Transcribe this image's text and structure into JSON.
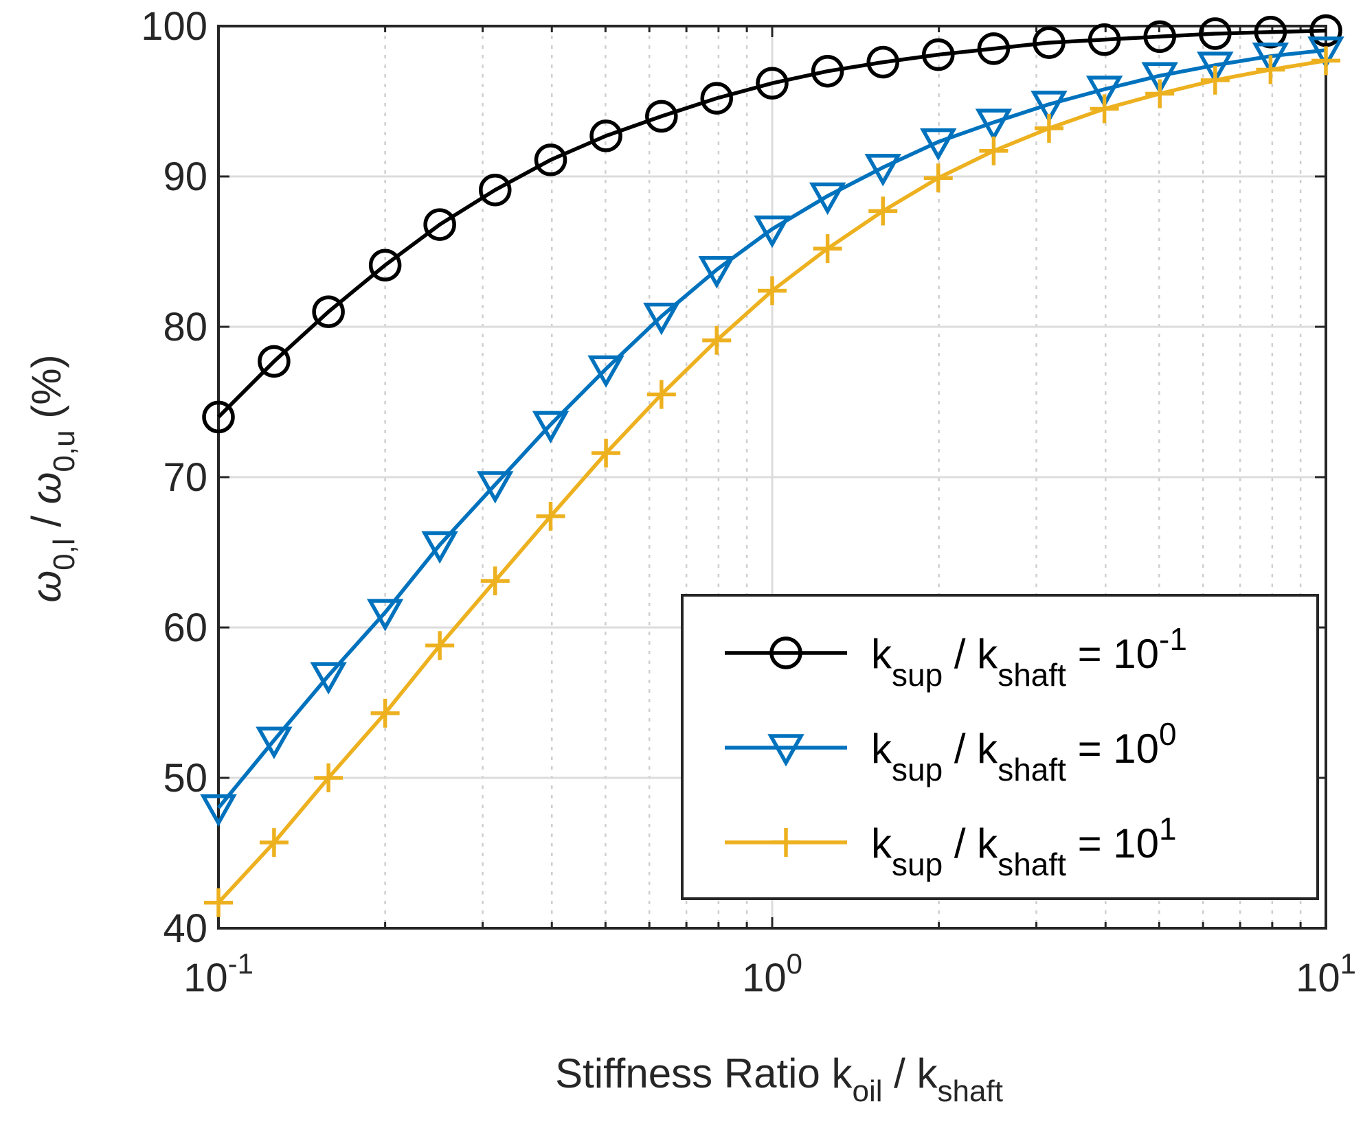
{
  "chart_data": {
    "type": "line",
    "x_scale": "log",
    "x": [
      0.1,
      0.126,
      0.158,
      0.2,
      0.251,
      0.316,
      0.398,
      0.501,
      0.631,
      0.794,
      1.0,
      1.259,
      1.585,
      1.995,
      2.512,
      3.162,
      3.981,
      5.012,
      6.31,
      7.943,
      10.0
    ],
    "series": [
      {
        "name": "10^-1",
        "label_base": "k",
        "label_sub1": "sup",
        "label_mid": " / k",
        "label_sub2": "shaft",
        "label_eq": " = 10",
        "label_exp": "-1",
        "color": "#000000",
        "marker": "circle",
        "values": [
          74.0,
          77.7,
          81.0,
          84.1,
          86.8,
          89.1,
          91.1,
          92.7,
          94.0,
          95.2,
          96.2,
          97.0,
          97.6,
          98.1,
          98.5,
          98.9,
          99.1,
          99.3,
          99.5,
          99.6,
          99.7
        ]
      },
      {
        "name": "10^0",
        "label_base": "k",
        "label_sub1": "sup",
        "label_mid": " / k",
        "label_sub2": "shaft",
        "label_eq": " = 10",
        "label_exp": "0",
        "color": "#0072BD",
        "marker": "triangle-down",
        "values": [
          48.0,
          52.5,
          56.8,
          61.0,
          65.5,
          69.5,
          73.5,
          77.2,
          80.7,
          83.8,
          86.5,
          88.7,
          90.6,
          92.3,
          93.6,
          94.8,
          95.8,
          96.7,
          97.4,
          98.0,
          98.4
        ]
      },
      {
        "name": "10^1",
        "label_base": "k",
        "label_sub1": "sup",
        "label_mid": " / k",
        "label_sub2": "shaft",
        "label_eq": " = 10",
        "label_exp": "1",
        "color": "#EDB120",
        "marker": "plus",
        "values": [
          41.7,
          45.7,
          50.0,
          54.3,
          58.8,
          63.1,
          67.4,
          71.6,
          75.5,
          79.1,
          82.4,
          85.2,
          87.7,
          89.9,
          91.7,
          93.2,
          94.5,
          95.5,
          96.4,
          97.1,
          97.7
        ]
      }
    ],
    "xlim": [
      0.1,
      10
    ],
    "ylim": [
      40,
      100
    ],
    "x_ticks": [
      {
        "value": 0.1,
        "base": "10",
        "exp": "-1"
      },
      {
        "value": 1,
        "base": "10",
        "exp": "0"
      },
      {
        "value": 10,
        "base": "10",
        "exp": "1"
      }
    ],
    "y_ticks": [
      40,
      50,
      60,
      70,
      80,
      90,
      100
    ],
    "xlabel": {
      "text": "Stiffness Ratio k",
      "sub1": "oil",
      "mid": "  / k",
      "sub2": "shaft"
    },
    "ylabel": {
      "sym1": "ω",
      "sub1": "0,l",
      "mid": " / ",
      "sym2": "ω",
      "sub2": "0,u",
      "suffix": " (%)"
    },
    "grid": true,
    "legend_position": "bottom-right"
  }
}
